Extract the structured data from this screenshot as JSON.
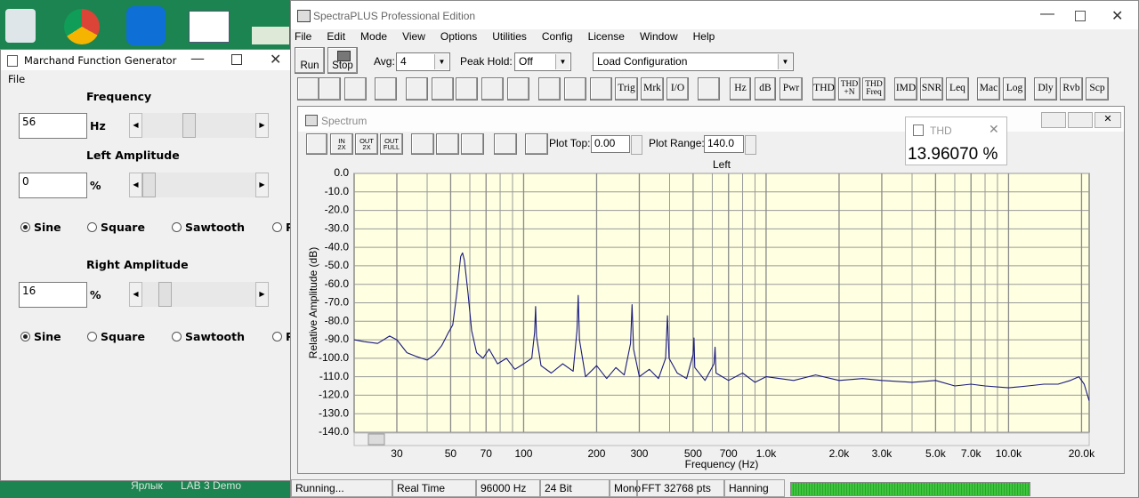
{
  "desktop": {
    "shortcut_labels": [
      "Ярлык",
      "LAB 3 Demo"
    ]
  },
  "generator": {
    "title": "Marchand Function Generator",
    "menu": [
      "File"
    ],
    "frequency": {
      "label": "Frequency",
      "value": "56",
      "unit": "Hz"
    },
    "left": {
      "label": "Left Amplitude",
      "value": "0",
      "unit": "%",
      "waveforms": [
        "Sine",
        "Square",
        "Sawtooth",
        "Pulse"
      ],
      "selected": "Sine"
    },
    "right": {
      "label": "Right Amplitude",
      "value": "16",
      "unit": "%",
      "waveforms": [
        "Sine",
        "Square",
        "Sawtooth",
        "Pulse"
      ],
      "selected": "Sine"
    }
  },
  "spectraplus": {
    "title": "SpectraPLUS Professional Edition",
    "menu": [
      "File",
      "Edit",
      "Mode",
      "View",
      "Options",
      "Utilities",
      "Config",
      "License",
      "Window",
      "Help"
    ],
    "toolbar": {
      "run": "Run",
      "stop": "Stop",
      "avg_label": "Avg:",
      "avg": "4",
      "peak_hold_label": "Peak Hold:",
      "peak_hold": "Off",
      "configuration": "Load Configuration",
      "buttons": [
        "Trig",
        "Mrk",
        "I/O",
        "Hz",
        "dB",
        "Pwr",
        "THD",
        "THD\n+N",
        "THD\nFreq",
        "IMD",
        "SNR",
        "Leq",
        "Mac",
        "Log",
        "Dly",
        "Rvb",
        "Scp"
      ]
    },
    "spectrum": {
      "title": "Spectrum",
      "zoom_buttons": [
        "IN\n2X",
        "OUT\n2X",
        "OUT\nFULL"
      ],
      "plot_top_label": "Plot Top:",
      "plot_top": "0.00",
      "plot_range_label": "Plot Range:",
      "plot_range": "140.0"
    },
    "thd": {
      "label": "THD",
      "value": "13.96070 %"
    },
    "status": [
      "Running...",
      "Real Time",
      "96000 Hz",
      "24 Bit",
      "Mono",
      "FFT 32768 pts",
      "Hanning"
    ]
  },
  "chart_data": {
    "type": "line",
    "title": "Left",
    "xlabel": "Frequency (Hz)",
    "ylabel": "Relative Amplitude (dB)",
    "xscale": "log",
    "grid": true,
    "color": "#1a1a80",
    "xlim": [
      20,
      21500
    ],
    "ylim": [
      -140,
      0
    ],
    "xticks": [
      30,
      50,
      70,
      100,
      200,
      300,
      500,
      700,
      {
        "value": 1000,
        "label": "1.0k"
      },
      {
        "value": 2000,
        "label": "2.0k"
      },
      {
        "value": 3000,
        "label": "3.0k"
      },
      {
        "value": 5000,
        "label": "5.0k"
      },
      {
        "value": 7000,
        "label": "7.0k"
      },
      {
        "value": 10000,
        "label": "10.0k"
      },
      {
        "value": 20000,
        "label": "20.0k"
      }
    ],
    "minor_xticks": [
      40,
      60,
      80,
      90,
      400,
      600,
      800,
      900,
      4000,
      6000,
      8000,
      9000
    ],
    "yticks": [
      {
        "value": 0,
        "label": "0.0"
      },
      {
        "value": -10,
        "label": "-10.0"
      },
      {
        "value": -20,
        "label": "-20.0"
      },
      {
        "value": -30,
        "label": "-30.0"
      },
      {
        "value": -40,
        "label": "-40.0"
      },
      {
        "value": -50,
        "label": "-50.0"
      },
      {
        "value": -60,
        "label": "-60.0"
      },
      {
        "value": -70,
        "label": "-70.0"
      },
      {
        "value": -80,
        "label": "-80.0"
      },
      {
        "value": -90,
        "label": "-90.0"
      },
      {
        "value": -100,
        "label": "-100.0"
      },
      {
        "value": -110,
        "label": "-110.0"
      },
      {
        "value": -120,
        "label": "-120.0"
      },
      {
        "value": -130,
        "label": "-130.0"
      },
      {
        "value": -140,
        "label": "-140.0"
      }
    ],
    "x": [
      20,
      22,
      25,
      28,
      30,
      33,
      36,
      40,
      43,
      46,
      49,
      51,
      53,
      55,
      56,
      57,
      59,
      61,
      64,
      68,
      72,
      78,
      85,
      92,
      100,
      108,
      111,
      112,
      113,
      118,
      130,
      145,
      160,
      166,
      168,
      170,
      180,
      200,
      220,
      240,
      260,
      276,
      280,
      284,
      300,
      330,
      360,
      385,
      392,
      398,
      430,
      470,
      500,
      504,
      508,
      560,
      610,
      616,
      622,
      700,
      800,
      900,
      1000,
      1300,
      1600,
      2000,
      2500,
      3000,
      4000,
      5000,
      6000,
      7000,
      8000,
      10000,
      12000,
      14000,
      16000,
      18000,
      19500,
      20500,
      21500
    ],
    "values": [
      -90,
      -91,
      -92,
      -88,
      -90,
      -97,
      -99,
      -101,
      -98,
      -93,
      -86,
      -82,
      -65,
      -45,
      -43,
      -47,
      -65,
      -85,
      -97,
      -100,
      -95,
      -103,
      -100,
      -106,
      -103,
      -100,
      -86,
      -72,
      -88,
      -104,
      -108,
      -103,
      -107,
      -85,
      -66,
      -90,
      -110,
      -104,
      -111,
      -105,
      -109,
      -92,
      -71,
      -95,
      -110,
      -106,
      -111,
      -100,
      -77,
      -100,
      -108,
      -111,
      -98,
      -89,
      -105,
      -112,
      -103,
      -94,
      -108,
      -112,
      -108,
      -113,
      -110,
      -112,
      -109,
      -112,
      -111,
      -112,
      -113,
      -112,
      -115,
      -114,
      -115,
      -116,
      -115,
      -114,
      -114,
      -112,
      -110,
      -114,
      -123
    ]
  }
}
